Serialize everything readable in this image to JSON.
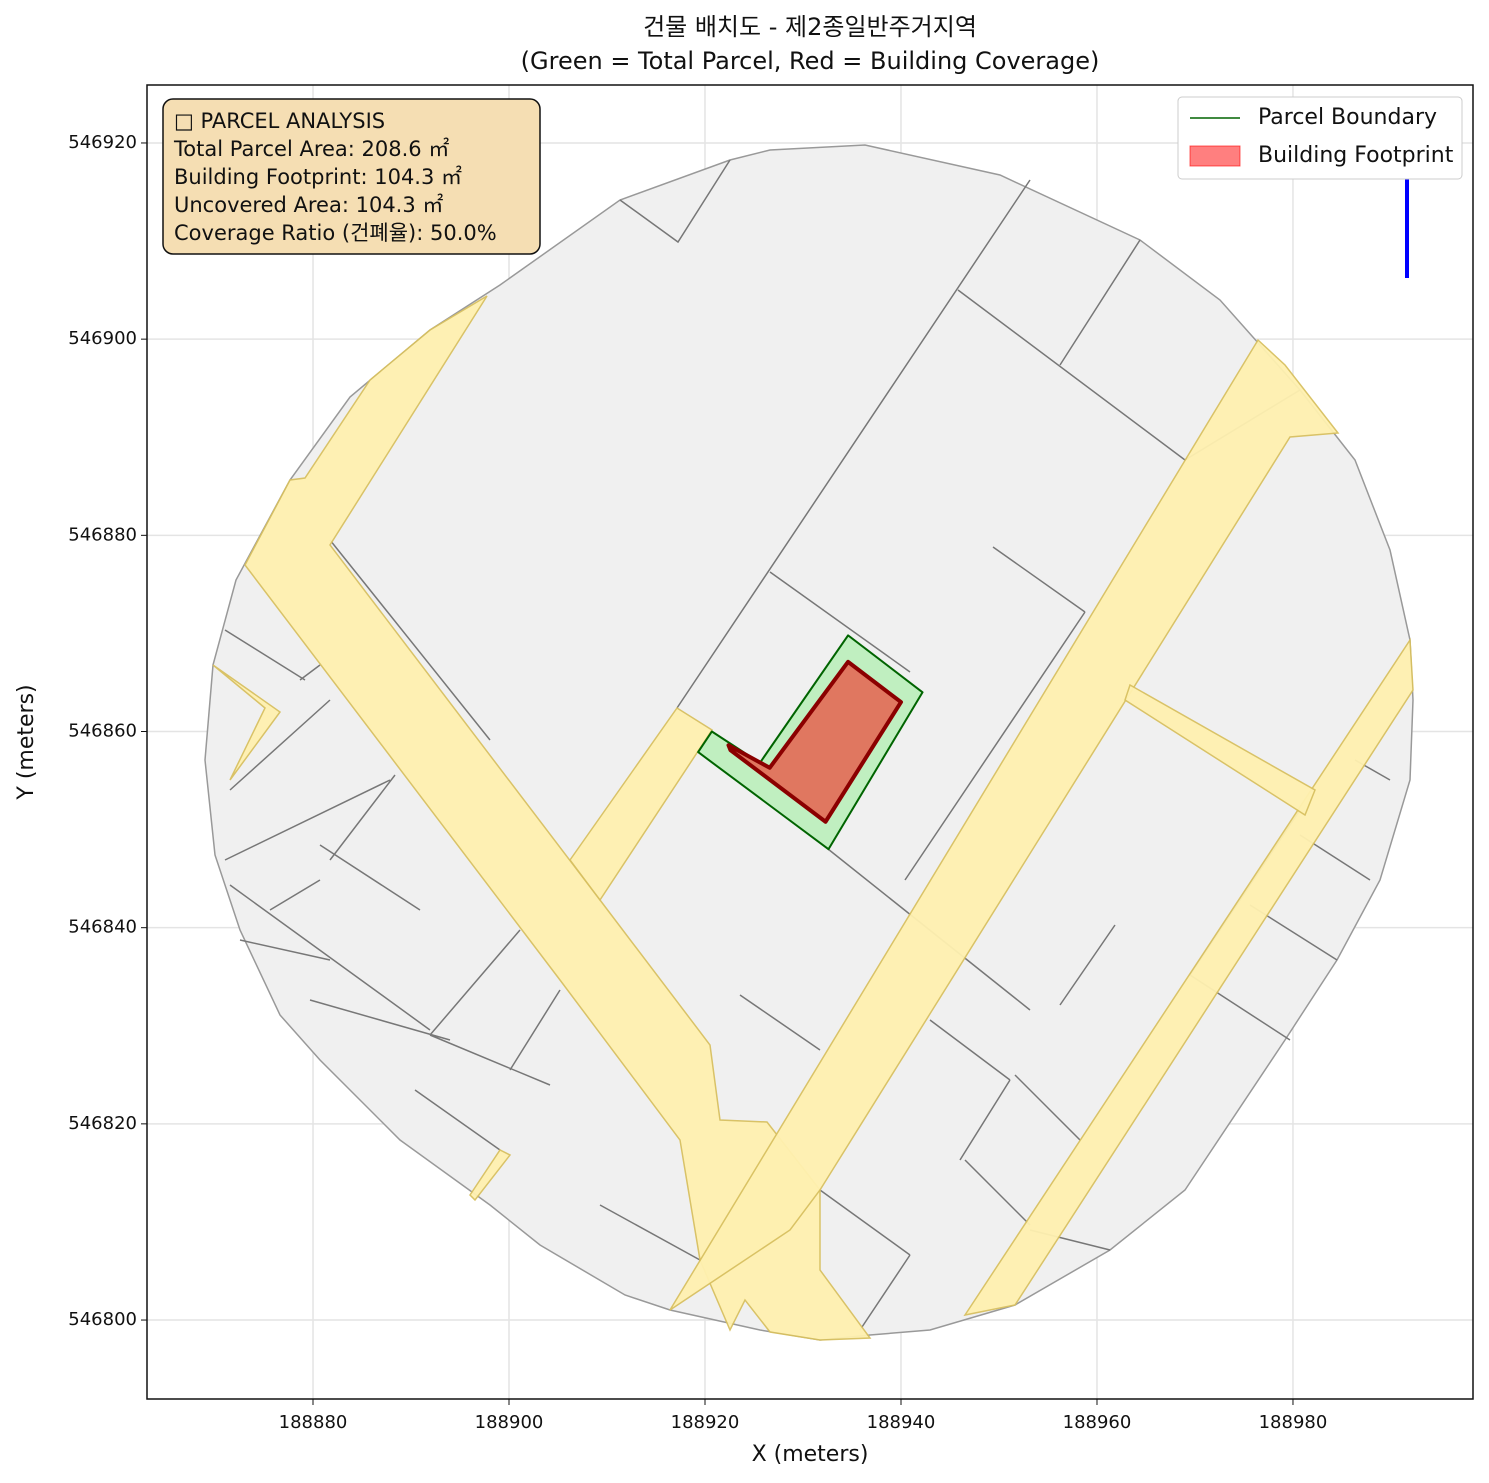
{
  "chart_data": {
    "type": "polygon",
    "title": "건물 배치도 - 제2종일반주거지역",
    "subtitle": "(Green = Total Parcel, Red = Building Coverage)",
    "x_label": "X (meters)",
    "y_label": "Y (meters)",
    "xlim": [
      188863.06,
      188998.37
    ],
    "ylim": [
      546791.95,
      546925.91
    ],
    "xticks": [
      188880,
      188900,
      188920,
      188940,
      188960,
      188980
    ],
    "yticks": [
      546800,
      546820,
      546840,
      546860,
      546880,
      546900,
      546920
    ],
    "grid": true,
    "legend": "upper right",
    "series": [
      {
        "name": "Parcel Boundary",
        "color": "#006400",
        "fill": "#90ee90",
        "fill_opacity": 0.5,
        "x": [
          188919.3,
          188920.7,
          188925.6,
          188934.6,
          188942.2,
          188932.6
        ],
        "y": [
          546857.9,
          546860.0,
          546856.8,
          546869.8,
          546864.0,
          546848.0
        ]
      },
      {
        "name": "Building Footprint",
        "color": "#8b0000",
        "fill": "#ff0000",
        "fill_opacity": 0.5,
        "x": [
          188922.4,
          188926.6,
          188934.6,
          188940.0,
          188932.3,
          188922.6
        ],
        "y": [
          546858.6,
          546856.3,
          546867.1,
          546863.0,
          546850.8,
          546858.1
        ]
      }
    ],
    "info_box": [
      "□ PARCEL ANALYSIS",
      "Total Parcel Area: 208.6 ㎡",
      "Building Footprint: 104.3 ㎡",
      "Uncovered Area: 104.3 ㎡",
      "Coverage Ratio (건폐율): 50.0%"
    ]
  }
}
